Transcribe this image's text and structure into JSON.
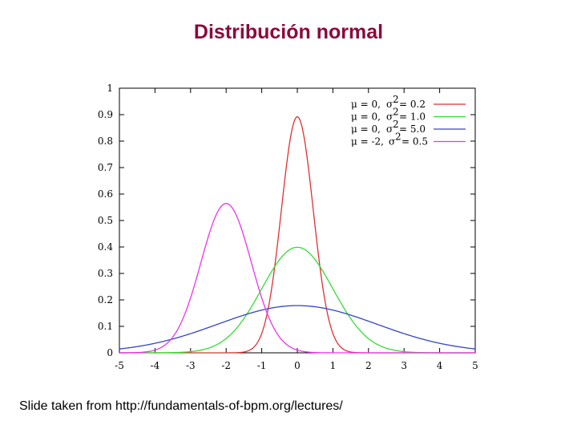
{
  "slide": {
    "title": "Distribución normal",
    "title_color": "#8b0a3a",
    "footer": "Slide taken from http://fundamentals-of-bpm.org/lectures/"
  },
  "chart_data": {
    "type": "line",
    "title": "",
    "xlabel": "",
    "ylabel": "",
    "xlim": [
      -5,
      5
    ],
    "ylim": [
      0,
      1
    ],
    "x_ticks": [
      "-5",
      "-4",
      "-3",
      "-2",
      "-1",
      "0",
      "1",
      "2",
      "3",
      "4",
      "5"
    ],
    "y_ticks": [
      "0",
      "0.1",
      "0.2",
      "0.3",
      "0.4",
      "0.5",
      "0.6",
      "0.7",
      "0.8",
      "0.9",
      "1"
    ],
    "grid": false,
    "legend_position": "top-right",
    "series": [
      {
        "name": "μ = 0, σ² = 0.2",
        "mu_label": "μ = 0,",
        "sigma_sq_label": "= 0.2",
        "mu": 0,
        "variance": 0.2,
        "color": "#e03030"
      },
      {
        "name": "μ = 0, σ² = 1.0",
        "mu_label": "μ = 0,",
        "sigma_sq_label": "= 1.0",
        "mu": 0,
        "variance": 1.0,
        "color": "#33dd33"
      },
      {
        "name": "μ = 0, σ² = 5.0",
        "mu_label": "μ = 0,",
        "sigma_sq_label": "= 5.0",
        "mu": 0,
        "variance": 5.0,
        "color": "#3344cc"
      },
      {
        "name": "μ = -2, σ² = 0.5",
        "mu_label": "μ = -2,",
        "sigma_sq_label": "= 0.5",
        "mu": -2,
        "variance": 0.5,
        "color": "#ee33ee"
      }
    ]
  }
}
